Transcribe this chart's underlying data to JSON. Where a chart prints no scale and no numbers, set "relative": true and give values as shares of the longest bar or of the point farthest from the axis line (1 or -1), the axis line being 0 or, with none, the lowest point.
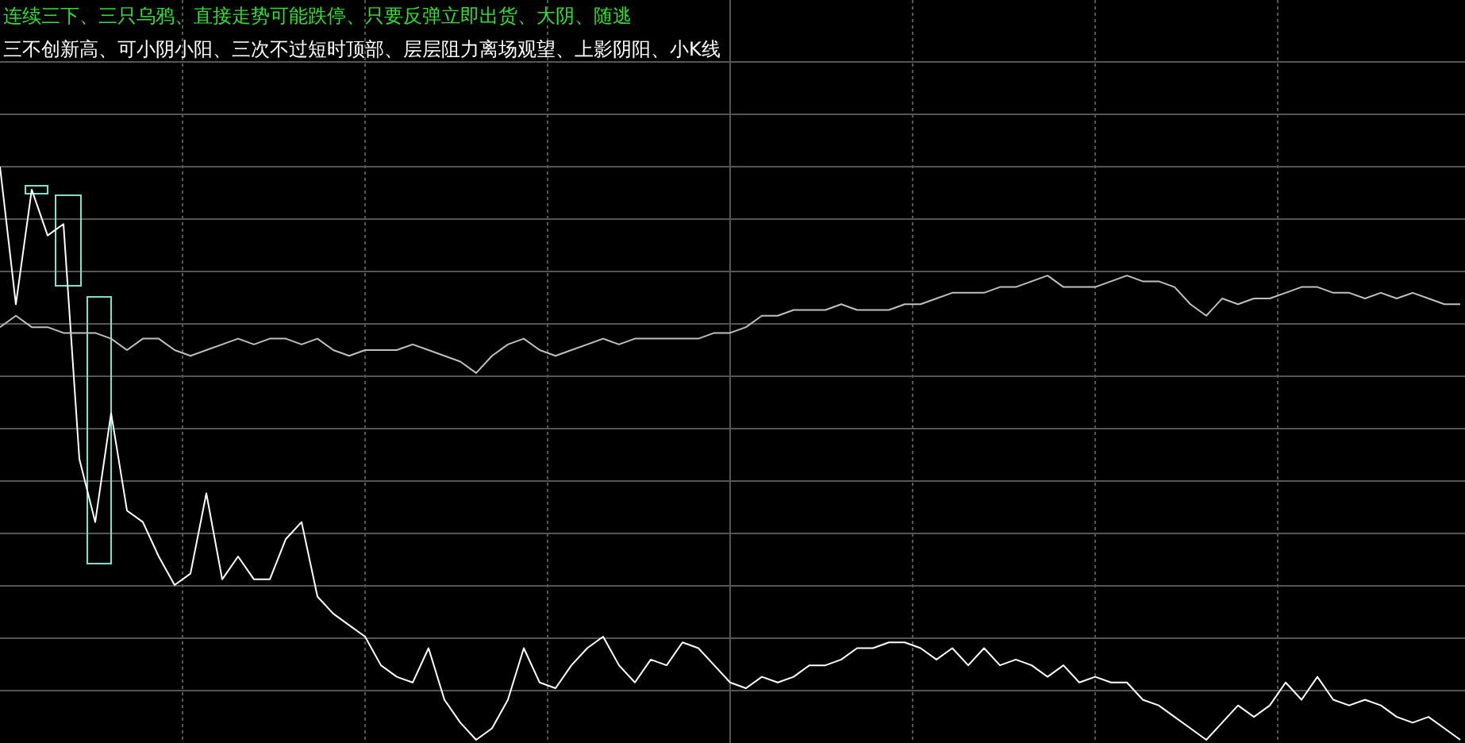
{
  "chart_data": {
    "type": "line",
    "relative": true,
    "grid": true,
    "marker": "none",
    "line_style": "solid",
    "annotations": [
      "连续三下、三只乌鸦、直接走势可能跌停、只要反弹立即出货、大阴、随逃",
      "三不创新高、可小阴小阳、三次不过短时顶部、层层阻力离场观望、上影阴阳、小K线"
    ],
    "categories": [
      null,
      null,
      null,
      null,
      null,
      null,
      null,
      null,
      null,
      null,
      null,
      null,
      null,
      null,
      null,
      null,
      null,
      null,
      null,
      null,
      null,
      null,
      null,
      null,
      null,
      null,
      null,
      null,
      null,
      null,
      null,
      null,
      null,
      null,
      null,
      null,
      null,
      null,
      null,
      null,
      null,
      null,
      null,
      null,
      null,
      null,
      null,
      null,
      null,
      null,
      null,
      null,
      null,
      null,
      null,
      null,
      null,
      null,
      null,
      null,
      null,
      null,
      null,
      null,
      null,
      null,
      null,
      null,
      null,
      null,
      null,
      null,
      null,
      null,
      null,
      null,
      null,
      null,
      null,
      null,
      null,
      null,
      null,
      null,
      null,
      null,
      null,
      null,
      null,
      null,
      null,
      null,
      null
    ],
    "series": [
      {
        "color": "#ffffff",
        "values": [
          1.0,
          0.76,
          0.96,
          0.88,
          0.9,
          0.49,
          0.38,
          0.57,
          0.4,
          0.38,
          0.32,
          0.27,
          0.29,
          0.43,
          0.28,
          0.32,
          0.28,
          0.28,
          0.35,
          0.38,
          0.25,
          0.22,
          0.2,
          0.18,
          0.13,
          0.11,
          0.1,
          0.16,
          0.07,
          0.03,
          0.0,
          0.02,
          0.07,
          0.16,
          0.1,
          0.09,
          0.13,
          0.16,
          0.18,
          0.13,
          0.1,
          0.14,
          0.13,
          0.17,
          0.16,
          0.13,
          0.1,
          0.09,
          0.11,
          0.1,
          0.11,
          0.13,
          0.13,
          0.14,
          0.16,
          0.16,
          0.17,
          0.17,
          0.16,
          0.14,
          0.16,
          0.13,
          0.16,
          0.13,
          0.14,
          0.13,
          0.11,
          0.13,
          0.1,
          0.11,
          0.1,
          0.1,
          0.07,
          0.06,
          0.04,
          0.02,
          0.0,
          0.03,
          0.06,
          0.04,
          0.06,
          0.1,
          0.07,
          0.11,
          0.07,
          0.06,
          0.07,
          0.06,
          0.04,
          0.03,
          0.04,
          0.02,
          0.0
        ]
      },
      {
        "color": "#c0c0c0",
        "values": [
          0.72,
          0.74,
          0.72,
          0.72,
          0.71,
          0.71,
          0.71,
          0.7,
          0.68,
          0.7,
          0.7,
          0.68,
          0.67,
          0.68,
          0.69,
          0.7,
          0.69,
          0.7,
          0.7,
          0.69,
          0.7,
          0.68,
          0.67,
          0.68,
          0.68,
          0.68,
          0.69,
          0.68,
          0.67,
          0.66,
          0.64,
          0.67,
          0.69,
          0.7,
          0.68,
          0.67,
          0.68,
          0.69,
          0.7,
          0.69,
          0.7,
          0.7,
          0.7,
          0.7,
          0.7,
          0.71,
          0.71,
          0.72,
          0.74,
          0.74,
          0.75,
          0.75,
          0.75,
          0.76,
          0.75,
          0.75,
          0.75,
          0.76,
          0.76,
          0.77,
          0.78,
          0.78,
          0.78,
          0.79,
          0.79,
          0.8,
          0.81,
          0.79,
          0.79,
          0.79,
          0.8,
          0.81,
          0.8,
          0.8,
          0.79,
          0.76,
          0.74,
          0.77,
          0.76,
          0.77,
          0.77,
          0.78,
          0.79,
          0.79,
          0.78,
          0.78,
          0.77,
          0.78,
          0.77,
          0.78,
          0.77,
          0.76,
          0.76
        ]
      }
    ]
  }
}
